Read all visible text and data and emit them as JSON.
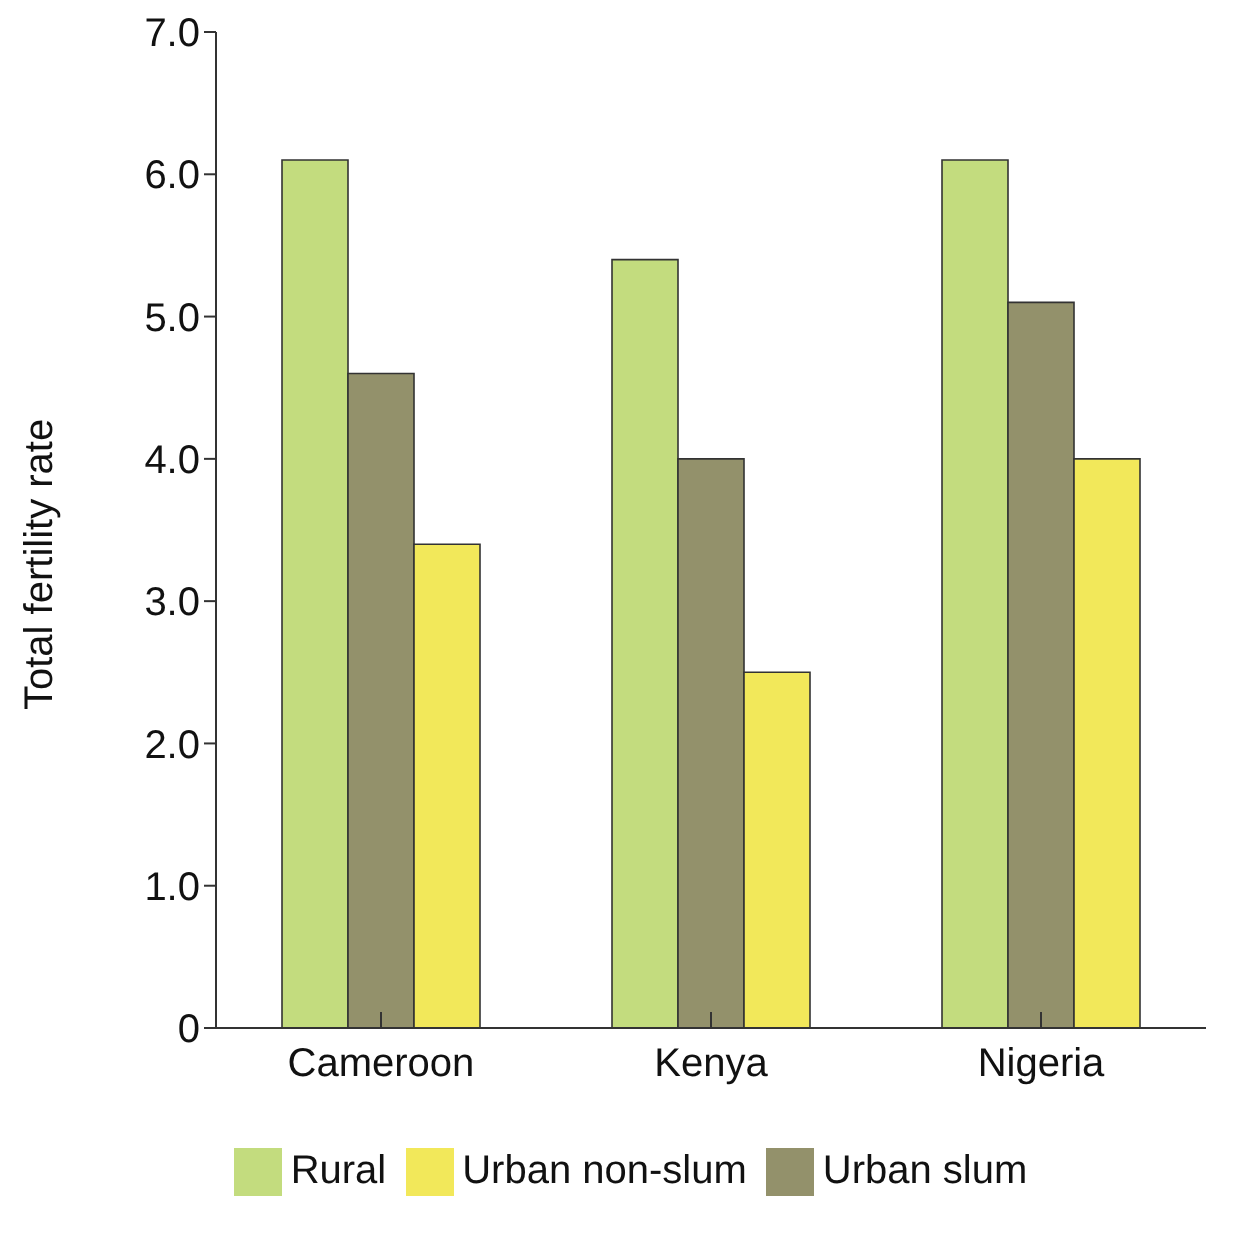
{
  "chart_data": {
    "type": "bar",
    "ylabel": "Total fertility rate",
    "categories": [
      "Cameroon",
      "Kenya",
      "Nigeria"
    ],
    "series": [
      {
        "name": "Rural",
        "color": "#c3dc7e",
        "values": [
          6.1,
          5.4,
          6.1
        ]
      },
      {
        "name": "Urban slum",
        "color": "#93916b",
        "values": [
          4.6,
          4.0,
          5.1
        ]
      },
      {
        "name": "Urban non-slum",
        "color": "#f2e85a",
        "values": [
          3.4,
          2.5,
          4.0
        ]
      }
    ],
    "ylim": [
      0,
      7
    ],
    "yticks": [
      0,
      {
        "value": 1,
        "label": "1.0"
      },
      {
        "value": 2,
        "label": "2.0"
      },
      {
        "value": 3,
        "label": "3.0"
      },
      {
        "value": 4,
        "label": "4.0"
      },
      {
        "value": 5,
        "label": "5.0"
      },
      {
        "value": 6,
        "label": "6.0"
      },
      {
        "value": 7,
        "label": "7.0"
      }
    ],
    "grid": false,
    "legend": "bottom"
  }
}
